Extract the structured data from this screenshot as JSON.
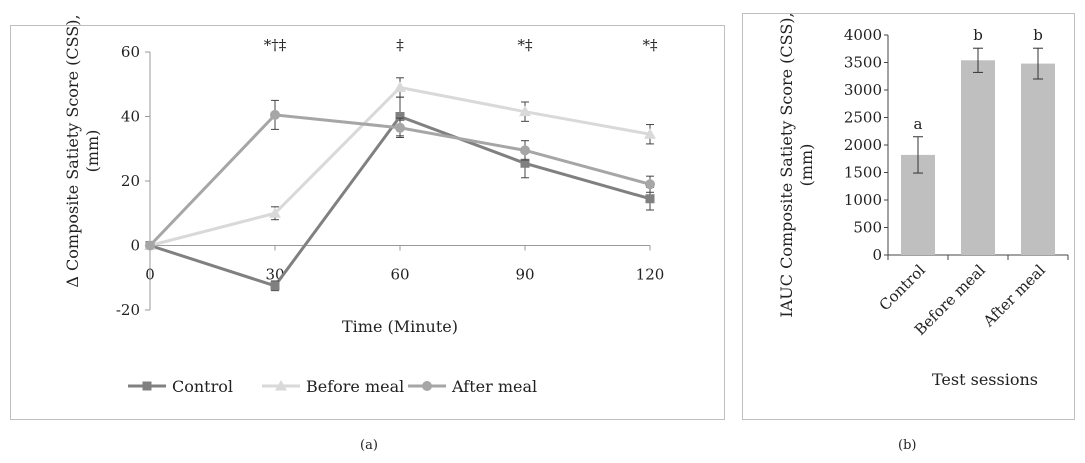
{
  "chart_data": [
    {
      "panel": "a",
      "type": "line",
      "x": [
        0,
        30,
        60,
        90,
        120
      ],
      "xlabel": "Time (Minute)",
      "ylabel": "Δ Composite Satiety Score (CSS), (mm)",
      "xlim": [
        0,
        120
      ],
      "ylim": [
        -20,
        60
      ],
      "yticks": [
        -20,
        0,
        20,
        40,
        60
      ],
      "xticks": [
        0,
        30,
        60,
        90,
        120
      ],
      "grid": false,
      "legend": "bottom",
      "series": [
        {
          "name": "Control",
          "values": [
            0,
            -12.5,
            40,
            25.5,
            14.5
          ],
          "errors": [
            0,
            1.5,
            6,
            4.5,
            3.5
          ],
          "color": "#808080",
          "marker": "square"
        },
        {
          "name": "Before meal",
          "values": [
            0,
            10,
            49,
            41.5,
            34.5
          ],
          "errors": [
            0,
            2,
            3,
            3,
            3
          ],
          "color": "#d9d9d9",
          "marker": "triangle"
        },
        {
          "name": "After meal",
          "values": [
            0,
            40.5,
            36.5,
            29.5,
            19
          ],
          "errors": [
            0,
            4.5,
            3,
            3,
            2.5
          ],
          "color": "#a6a6a6",
          "marker": "circle"
        }
      ],
      "annotations": [
        {
          "x": 30,
          "text": "*†‡"
        },
        {
          "x": 60,
          "text": "‡"
        },
        {
          "x": 90,
          "text": "*‡"
        },
        {
          "x": 120,
          "text": "*‡"
        }
      ],
      "caption": "(a)"
    },
    {
      "panel": "b",
      "type": "bar",
      "categories": [
        "Control",
        "Before meal",
        "After meal"
      ],
      "values": [
        1820,
        3540,
        3480
      ],
      "errors": [
        330,
        220,
        280
      ],
      "letters": [
        "a",
        "b",
        "b"
      ],
      "xlabel": "Test sessions",
      "ylabel": "IAUC Composite Satiety Score (CSS), (mm)",
      "ylim": [
        0,
        4000
      ],
      "yticks": [
        0,
        500,
        1000,
        1500,
        2000,
        2500,
        3000,
        3500,
        4000
      ],
      "color": "#bfbfbf",
      "grid": false,
      "caption": "(b)"
    }
  ]
}
